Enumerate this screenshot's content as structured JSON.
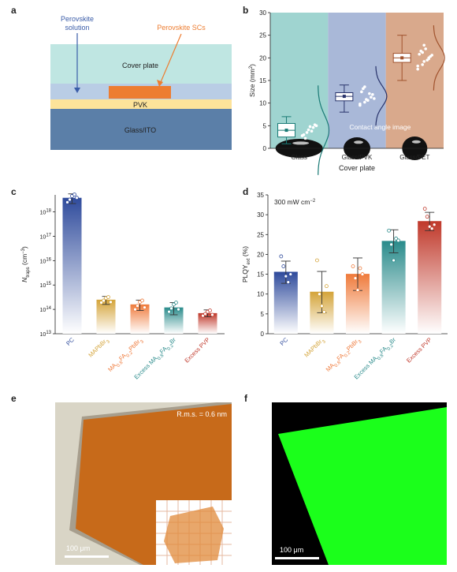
{
  "figure": {
    "panels": [
      "a",
      "b",
      "c",
      "d",
      "e",
      "f"
    ]
  },
  "panel_a": {
    "label": "a",
    "perovskite_solution": [
      "Perovskite",
      "solution"
    ],
    "perovskite_scs": "Perovskite SCs",
    "cover_plate": "Cover plate",
    "pvk": "PVK",
    "glass_ito": "Glass/ITO",
    "colors": {
      "cover": "#bfe6e2",
      "blue_film": "#b9cde5",
      "sc": "#ed7d31",
      "pvk": "#fde39a",
      "glass": "#5b7fa8"
    }
  },
  "panel_b": {
    "label": "b",
    "annotation": "Contact angle image",
    "colors": {
      "glass": "#9fd4d0",
      "glass_pvk": "#a9b8d8",
      "glass_pet": "#d9a98c",
      "teal": "#197a75",
      "navy": "#28336b",
      "brown": "#a0522d"
    }
  },
  "panel_c": {
    "label": "c",
    "colors": [
      "#2f4b9c",
      "#d4a43a",
      "#ef7b3c",
      "#2a8b8b",
      "#c0392b"
    ]
  },
  "panel_d": {
    "label": "d",
    "annotation_main": "300 mW cm",
    "annotation_sup": "−2",
    "colors": [
      "#2f4b9c",
      "#d4a43a",
      "#ef7b3c",
      "#2a8b8b",
      "#c0392b"
    ]
  },
  "panel_e": {
    "label": "e",
    "rms": "R.m.s. = 0.6 nm",
    "scale": "100 μm",
    "colors": {
      "crystal": "#c76a1a",
      "background": "#d9d5c6"
    }
  },
  "panel_f": {
    "label": "f",
    "scale": "100 μm",
    "colors": {
      "pl": "#1bff1b",
      "background": "#000000"
    }
  },
  "chart_data": [
    {
      "panel": "b",
      "type": "box",
      "categories": [
        "Glass",
        "Glass/PVK",
        "Glass/PET"
      ],
      "xlabel": "Cover plate",
      "ylabel": "Size (mm²)",
      "ylim": [
        0,
        30
      ],
      "yticks": [
        0,
        5,
        10,
        15,
        20,
        25,
        30
      ],
      "series": [
        {
          "name": "Glass",
          "min": 1,
          "q1": 2.5,
          "median": 4,
          "q3": 5.5,
          "max": 7,
          "points": [
            2.8,
            3.5,
            4.1,
            4.6,
            5.2,
            3.0,
            2.2,
            4.8,
            3.8,
            5.0
          ]
        },
        {
          "name": "Glass/PVK",
          "min": 8,
          "q1": 10.5,
          "median": 11.5,
          "q3": 12.3,
          "max": 14,
          "points": [
            9.5,
            10.2,
            10.8,
            11.3,
            11.9,
            12.5,
            13.2,
            10.6,
            12.1,
            11.0,
            9.8,
            13.6
          ]
        },
        {
          "name": "Glass/PET",
          "min": 15,
          "q1": 19,
          "median": 20,
          "q3": 21,
          "max": 25,
          "points": [
            17.5,
            18.5,
            19.2,
            19.8,
            20.3,
            20.8,
            21.5,
            22.0,
            19.5,
            20.6,
            18.2,
            21.2,
            22.8,
            20.0
          ]
        }
      ]
    },
    {
      "panel": "c",
      "type": "bar",
      "log_y": true,
      "categories": [
        "PC",
        "MAPbBr3",
        "MA0.8FA0.2PbBr3",
        "Excess MA0.8FA0.2Br",
        "Excess PVP"
      ],
      "category_labels": [
        [
          {
            "t": "PC"
          }
        ],
        [
          {
            "t": "MAPbBr"
          },
          {
            "t": "3",
            "sub": true
          }
        ],
        [
          {
            "t": "MA"
          },
          {
            "t": "0.8",
            "sub": true
          },
          {
            "t": "FA"
          },
          {
            "t": "0.2",
            "sub": true
          },
          {
            "t": "PbBr"
          },
          {
            "t": "3",
            "sub": true
          }
        ],
        [
          {
            "t": "Excess MA"
          },
          {
            "t": "0.8",
            "sub": true
          },
          {
            "t": "FA"
          },
          {
            "t": "0.2",
            "sub": true
          },
          {
            "t": "Br"
          }
        ],
        [
          {
            "t": "Excess PVP"
          }
        ]
      ],
      "ylabel_parts": [
        {
          "t": "N",
          "italic": true
        },
        {
          "t": "traps",
          "sub": true
        },
        {
          "t": " (cm"
        },
        {
          "t": "−3",
          "sup": true
        },
        {
          "t": ")"
        }
      ],
      "ylim_exp": [
        13,
        18.7
      ],
      "yticks_exp": [
        13,
        14,
        15,
        16,
        17,
        18
      ],
      "values": [
        3.8e+18,
        250000000000000.0,
        160000000000000.0,
        120000000000000.0,
        70000000000000.0
      ],
      "err_low": [
        2.2e+18,
        160000000000000.0,
        90000000000000.0,
        60000000000000.0,
        50000000000000.0
      ],
      "err_high": [
        5.5e+18,
        340000000000000.0,
        240000000000000.0,
        190000000000000.0,
        95000000000000.0
      ],
      "points": [
        [
          2.5e+18,
          3.2e+18,
          4.5e+18,
          5.2e+18,
          3.8e+18
        ],
        [
          190000000000000.0,
          230000000000000.0,
          290000000000000.0,
          320000000000000.0,
          200000000000000.0
        ],
        [
          100000000000000.0,
          140000000000000.0,
          200000000000000.0,
          230000000000000.0,
          120000000000000.0
        ],
        [
          80000000000000.0,
          110000000000000.0,
          160000000000000.0,
          190000000000000.0,
          100000000000000.0
        ],
        [
          55000000000000.0,
          65000000000000.0,
          80000000000000.0,
          90000000000000.0,
          60000000000000.0
        ]
      ]
    },
    {
      "panel": "d",
      "type": "bar",
      "categories": [
        "PC",
        "MAPbBr3",
        "MA0.8FA0.2PbBr3",
        "Excess MA0.8FA0.2Br",
        "Excess PVP"
      ],
      "category_labels": [
        [
          {
            "t": "PC"
          }
        ],
        [
          {
            "t": "MAPbBr"
          },
          {
            "t": "3",
            "sub": true
          }
        ],
        [
          {
            "t": "MA"
          },
          {
            "t": "0.8",
            "sub": true
          },
          {
            "t": "FA"
          },
          {
            "t": "0.2",
            "sub": true
          },
          {
            "t": "PbBr"
          },
          {
            "t": "3",
            "sub": true
          }
        ],
        [
          {
            "t": "Excess MA"
          },
          {
            "t": "0.8",
            "sub": true
          },
          {
            "t": "FA"
          },
          {
            "t": "0.2",
            "sub": true
          },
          {
            "t": "Br"
          }
        ],
        [
          {
            "t": "Excess PVP"
          }
        ]
      ],
      "ylabel_parts": [
        {
          "t": "PLQY"
        },
        {
          "t": "ext",
          "sub": true
        },
        {
          "t": " (%)"
        }
      ],
      "ylim": [
        0,
        35
      ],
      "yticks": [
        0,
        5,
        10,
        15,
        20,
        25,
        30,
        35
      ],
      "values": [
        15.5,
        10.5,
        15.0,
        23.3,
        28.3
      ],
      "err": [
        2.8,
        5.2,
        4.1,
        2.9,
        2.3
      ],
      "points": [
        [
          19.5,
          17.0,
          14.5,
          13.0,
          15.0
        ],
        [
          18.5,
          10.0,
          7.0,
          5.5,
          12.0
        ],
        [
          17.0,
          14.0,
          11.0,
          16.5,
          15.0
        ],
        [
          26.0,
          22.5,
          18.5,
          24.0,
          23.5
        ],
        [
          31.5,
          29.5,
          27.0,
          26.5,
          27.5
        ]
      ]
    }
  ]
}
